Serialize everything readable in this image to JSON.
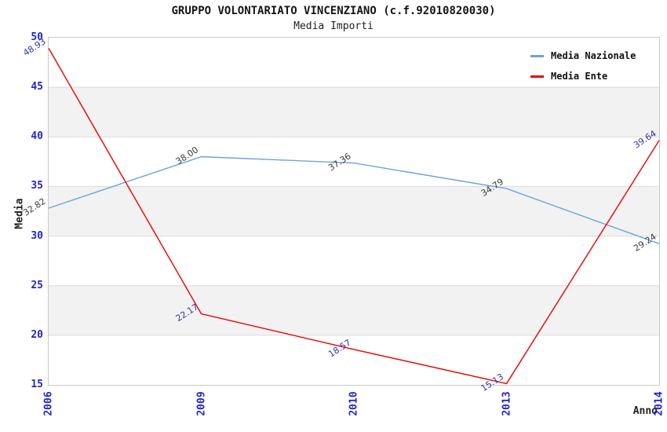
{
  "chart_data": {
    "type": "line",
    "title": "GRUPPO VOLONTARIATO VINCENZIANO (c.f.92010820030)",
    "subtitle": "Media Importi",
    "xlabel": "Anno",
    "ylabel": "Media",
    "categories": [
      "2006",
      "2009",
      "2010",
      "2013",
      "2014"
    ],
    "series": [
      {
        "name": "Media Nazionale",
        "color": "#6ca3dc",
        "label_color": "#3a3a3a",
        "values": [
          32.82,
          38.0,
          37.36,
          34.79,
          29.24
        ]
      },
      {
        "name": "Media Ente",
        "color": "#ee0000",
        "label_color": "#3333a0",
        "values": [
          48.93,
          22.17,
          18.57,
          15.13,
          39.64
        ]
      }
    ],
    "ylim": [
      15,
      50
    ],
    "ytick_step": 5,
    "yticks": [
      50,
      45,
      40,
      35,
      30,
      25,
      20,
      15
    ],
    "grid": true,
    "legend_position": "top-right",
    "band_colors": [
      "#ffffff",
      "#f2f2f2"
    ],
    "gridline_color": "#dcdcdc",
    "axis_tick_color": "#2323cc",
    "plot_border_color": "#c9c9c9"
  }
}
